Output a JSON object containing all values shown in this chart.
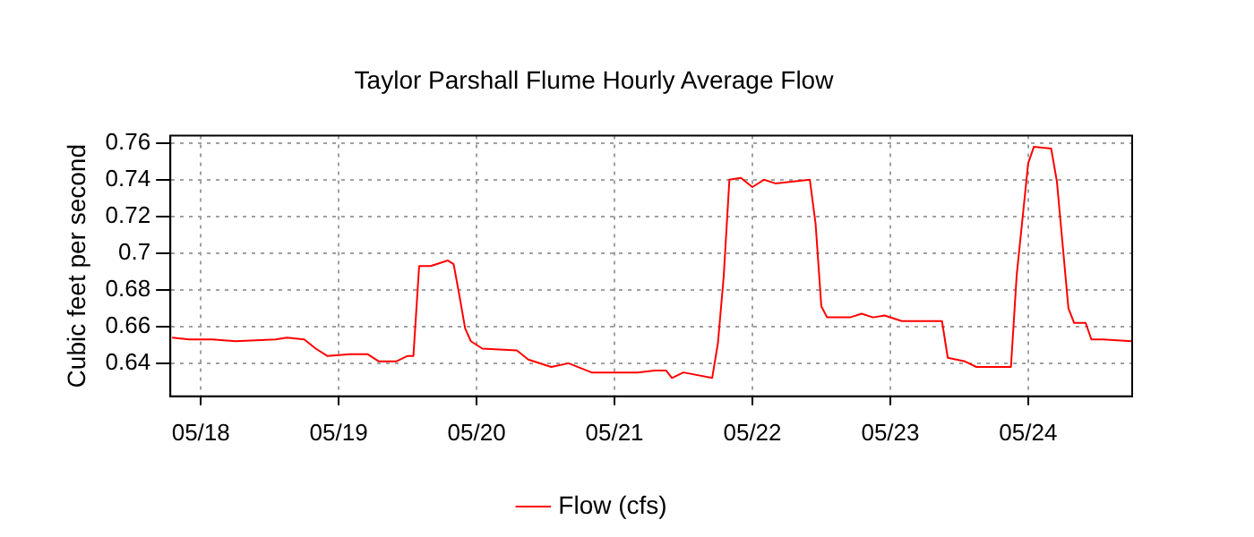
{
  "chart_data": {
    "type": "line",
    "title": "Taylor Parshall Flume Hourly Average Flow",
    "ylabel": "Cubic feet per second",
    "x": [
      "--05-17T19:00",
      "--05-17T22:00",
      "--05-18T02:00",
      "--05-18T06:00",
      "--05-18T13:00",
      "--05-18T15:00",
      "--05-18T18:00",
      "--05-18T20:00",
      "--05-18T22:00",
      "--05-19T02:00",
      "--05-19T05:00",
      "--05-19T07:00",
      "--05-19T10:00",
      "--05-19T12:00",
      "--05-19T13:00",
      "--05-19T14:00",
      "--05-19T16:00",
      "--05-19T19:00",
      "--05-19T20:00",
      "--05-19T21:00",
      "--05-19T22:00",
      "--05-19T23:00",
      "--05-20T01:00",
      "--05-20T07:00",
      "--05-20T09:00",
      "--05-20T13:00",
      "--05-20T16:00",
      "--05-20T20:00",
      "--05-21T00:00",
      "--05-21T04:00",
      "--05-21T07:00",
      "--05-21T09:00",
      "--05-21T10:00",
      "--05-21T12:00",
      "--05-21T17:00",
      "--05-21T18:00",
      "--05-21T19:00",
      "--05-21T20:00",
      "--05-21T22:00",
      "--05-22T00:00",
      "--05-22T02:00",
      "--05-22T04:00",
      "--05-22T10:00",
      "--05-22T11:00",
      "--05-22T12:00",
      "--05-22T13:00",
      "--05-22T17:00",
      "--05-22T19:00",
      "--05-22T21:00",
      "--05-22T23:00",
      "--05-23T02:00",
      "--05-23T09:00",
      "--05-23T10:00",
      "--05-23T13:00",
      "--05-23T15:00",
      "--05-23T21:00",
      "--05-23T22:00",
      "--05-24T00:00",
      "--05-24T01:00",
      "--05-24T04:00",
      "--05-24T05:00",
      "--05-24T07:00",
      "--05-24T08:00",
      "--05-24T10:00",
      "--05-24T11:00",
      "--05-24T13:00",
      "--05-24T18:00"
    ],
    "series": [
      {
        "name": "Flow (cfs)",
        "color": "#ff0000",
        "values": [
          0.654,
          0.653,
          0.653,
          0.652,
          0.653,
          0.654,
          0.653,
          0.648,
          0.644,
          0.645,
          0.645,
          0.641,
          0.641,
          0.644,
          0.644,
          0.693,
          0.693,
          0.696,
          0.694,
          0.677,
          0.659,
          0.652,
          0.648,
          0.647,
          0.642,
          0.638,
          0.64,
          0.635,
          0.635,
          0.635,
          0.636,
          0.636,
          0.632,
          0.635,
          0.632,
          0.651,
          0.687,
          0.74,
          0.741,
          0.736,
          0.74,
          0.738,
          0.74,
          0.716,
          0.671,
          0.665,
          0.665,
          0.667,
          0.665,
          0.666,
          0.663,
          0.663,
          0.643,
          0.641,
          0.638,
          0.638,
          0.688,
          0.749,
          0.758,
          0.757,
          0.739,
          0.67,
          0.662,
          0.662,
          0.653,
          0.653,
          0.652
        ]
      }
    ],
    "xlim": [
      "--05-17T18:42",
      "--05-24T18:06"
    ],
    "xticks": [
      {
        "value": "--05-18",
        "label": "05/18"
      },
      {
        "value": "--05-19",
        "label": "05/19"
      },
      {
        "value": "--05-20",
        "label": "05/20"
      },
      {
        "value": "--05-21",
        "label": "05/21"
      },
      {
        "value": "--05-22",
        "label": "05/22"
      },
      {
        "value": "--05-23",
        "label": "05/23"
      },
      {
        "value": "--05-24",
        "label": "05/24"
      }
    ],
    "ylim": [
      0.622,
      0.764
    ],
    "yticks": [
      0.64,
      0.66,
      0.68,
      0.7,
      0.72,
      0.74,
      0.76
    ],
    "grid": true,
    "legend": "bottom",
    "marker": "none",
    "line_style": "solid"
  }
}
